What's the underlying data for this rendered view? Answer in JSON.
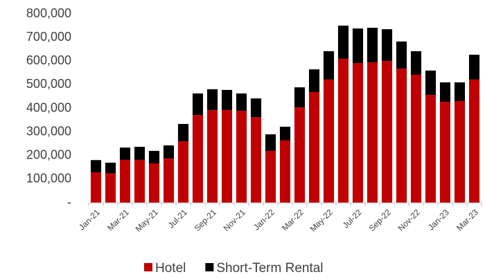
{
  "chart_data": {
    "type": "stacked_bar",
    "categories": [
      "Jan-21",
      null,
      "Mar-21",
      null,
      "May-21",
      null,
      "Jul-21",
      null,
      "Sep-21",
      null,
      "Nov-21",
      null,
      "Jan-22",
      null,
      "Mar-22",
      null,
      "May-22",
      null,
      "Jul-22",
      null,
      "Sep-22",
      null,
      "Nov-22",
      null,
      "Jan-23",
      null,
      "Mar-23"
    ],
    "series": [
      {
        "name": "Hotel",
        "color": "#c00000",
        "values": [
          129000,
          126000,
          182000,
          182000,
          167000,
          188000,
          261000,
          372000,
          393000,
          393000,
          390000,
          363000,
          220000,
          264000,
          404000,
          469000,
          522000,
          610000,
          592000,
          595000,
          601000,
          568000,
          542000,
          457000,
          428000,
          431000,
          522000
        ]
      },
      {
        "name": "Short-Term Rental",
        "color": "#000000",
        "values": [
          52000,
          44000,
          52000,
          55000,
          53000,
          55000,
          73000,
          91000,
          88000,
          85000,
          73000,
          79000,
          70000,
          58000,
          85000,
          96000,
          120000,
          140000,
          146000,
          146000,
          134000,
          115000,
          100000,
          103000,
          82000,
          79000,
          105000
        ]
      }
    ],
    "ylim": [
      0,
      800000
    ],
    "yticks": [
      {
        "value": 0,
        "label": "-"
      },
      {
        "value": 100000,
        "label": "100,000"
      },
      {
        "value": 200000,
        "label": "200,000"
      },
      {
        "value": 300000,
        "label": "300,000"
      },
      {
        "value": 400000,
        "label": "400,000"
      },
      {
        "value": 500000,
        "label": "500,000"
      },
      {
        "value": 600000,
        "label": "600,000"
      },
      {
        "value": 700000,
        "label": "700,000"
      },
      {
        "value": 800000,
        "label": "800,000"
      }
    ],
    "grid": false,
    "legend": "bottom"
  }
}
